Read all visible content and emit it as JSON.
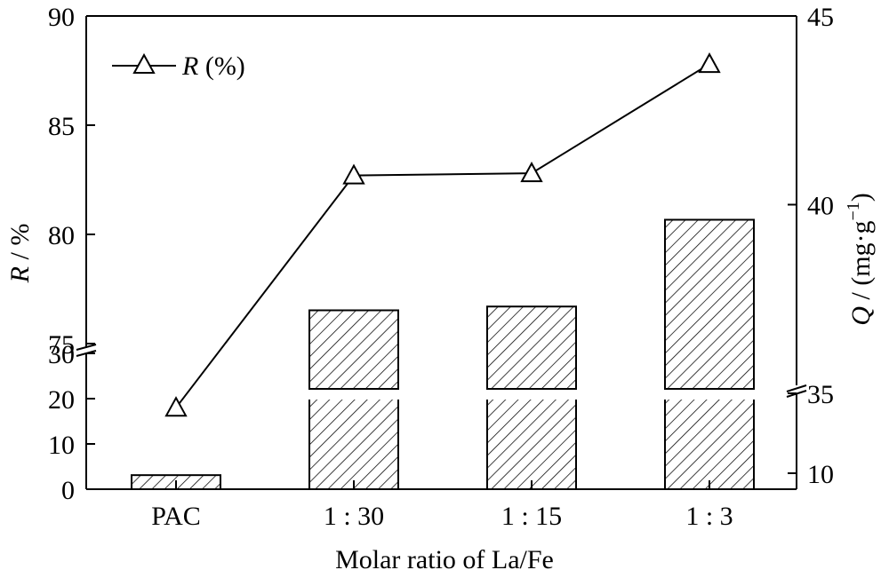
{
  "chart_data": {
    "type": "bar",
    "categories": [
      "PAC",
      "1 : 30",
      "1 : 15",
      "1 : 3"
    ],
    "xlabel": "Molar ratio of La/Fe",
    "ylabel_left": {
      "italic": "R",
      "rest": " / %"
    },
    "ylabel_right": {
      "italic": "Q",
      "rest": " / (mg·g",
      "sup": "−1",
      "close": ")"
    },
    "left_axis": {
      "lower_segment": {
        "range": [
          0,
          30
        ],
        "ticks": [
          "0",
          "10",
          "20",
          "30"
        ]
      },
      "upper_segment": {
        "range": [
          75,
          90
        ],
        "ticks": [
          "75",
          "80",
          "85",
          "90"
        ]
      }
    },
    "right_axis": {
      "lower_segment": {
        "range": [
          5,
          35
        ],
        "ticks": [
          "10",
          "35"
        ]
      },
      "upper_segment": {
        "range": [
          35,
          45
        ],
        "ticks": [
          "40",
          "45"
        ]
      }
    },
    "series": [
      {
        "kind": "bar",
        "axis": "right",
        "pattern": "diagonal-hatch",
        "values": [
          9.4,
          37.2,
          37.3,
          39.6
        ]
      },
      {
        "name": "R (%)",
        "name_parts": {
          "italic": "R",
          "rest": " (%)"
        },
        "kind": "line",
        "axis": "left",
        "marker": "open-triangle",
        "values": [
          18,
          82.7,
          82.8,
          87.8
        ]
      }
    ],
    "legend": {
      "position": "top-left"
    },
    "grid": false,
    "colors": {
      "line": "#000000",
      "bar_fill": "#ffffff",
      "hatch": "#000000"
    }
  }
}
